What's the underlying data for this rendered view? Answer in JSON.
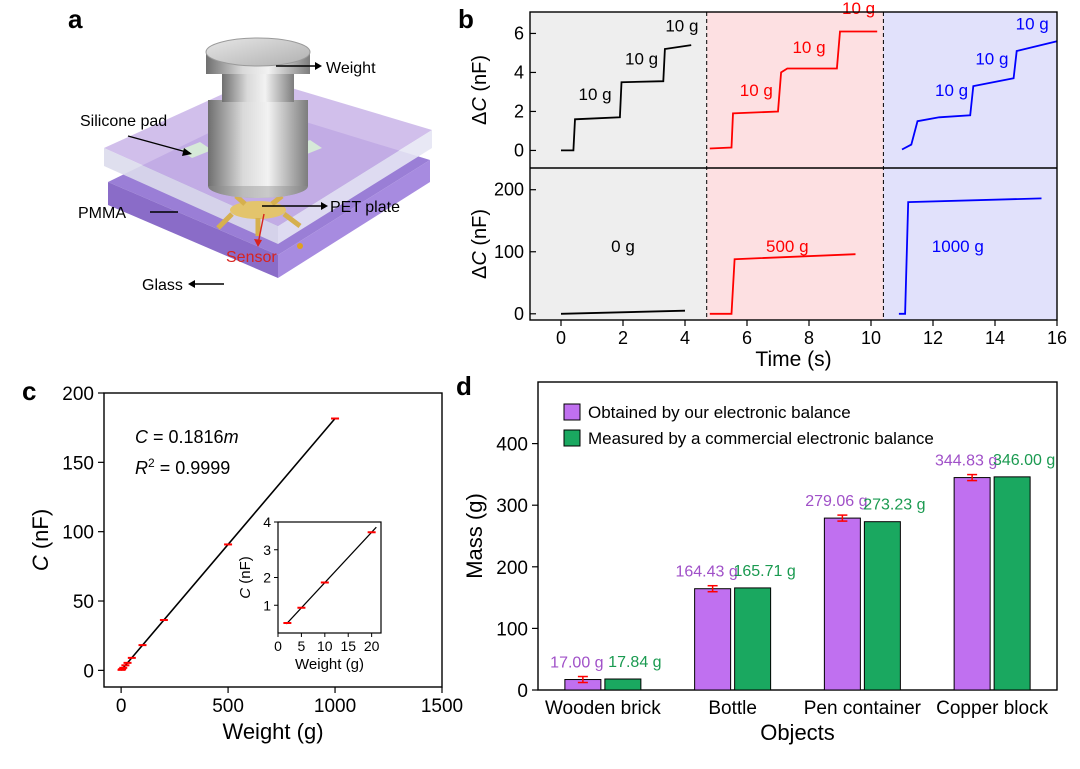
{
  "panel_labels": [
    "a",
    "b",
    "c",
    "d"
  ],
  "diagram_a": {
    "labels": {
      "weight": "Weight",
      "silicone_pad": "Silicone pad",
      "pmma": "PMMA",
      "pet_plate": "PET plate",
      "sensor": "Sensor",
      "glass": "Glass"
    },
    "sensor_color": "#d8231e",
    "plate_color": "#9a7ed6"
  },
  "chart_data": [
    {
      "id": "b",
      "type": "line",
      "xlabel": "Time (s)",
      "xlim": [
        -1,
        16
      ],
      "xticks": [
        0,
        2,
        4,
        6,
        8,
        10,
        12,
        14,
        16
      ],
      "regions": [
        {
          "x0": -1,
          "x1": 4.7,
          "color": "#eeeeee"
        },
        {
          "x0": 4.7,
          "x1": 10.4,
          "color": "#fde0e2"
        },
        {
          "x0": 10.4,
          "x1": 16,
          "color": "#e1e1fb"
        }
      ],
      "top": {
        "ylabel_italic": "C",
        "ylabel_prefix": "Δ",
        "ylabel_suffix": " (nF)",
        "ylim": [
          -0.9,
          7.1
        ],
        "yticks": [
          0,
          2,
          4,
          6
        ],
        "series": [
          {
            "color": "#000000",
            "points": [
              [
                0,
                0
              ],
              [
                0.4,
                0
              ],
              [
                0.45,
                1.6
              ],
              [
                1.9,
                1.7
              ],
              [
                1.95,
                3.5
              ],
              [
                3.3,
                3.55
              ],
              [
                3.35,
                5.2
              ],
              [
                4.2,
                5.4
              ]
            ],
            "annotations": [
              {
                "x": 1.1,
                "y": 2.6,
                "text": "10 g"
              },
              {
                "x": 2.6,
                "y": 4.4,
                "text": "10 g"
              },
              {
                "x": 3.9,
                "y": 6.1,
                "text": "10 g"
              }
            ]
          },
          {
            "color": "#ff0000",
            "points": [
              [
                4.8,
                0.1
              ],
              [
                5.5,
                0.15
              ],
              [
                5.55,
                1.9
              ],
              [
                7.0,
                2.0
              ],
              [
                7.1,
                4.0
              ],
              [
                7.3,
                4.2
              ],
              [
                8.9,
                4.2
              ],
              [
                9.0,
                6.1
              ],
              [
                10.2,
                6.1
              ]
            ],
            "annotations": [
              {
                "x": 6.3,
                "y": 2.8,
                "text": "10 g"
              },
              {
                "x": 8.0,
                "y": 5.0,
                "text": "10 g"
              },
              {
                "x": 9.6,
                "y": 7.0,
                "text": "10 g"
              }
            ]
          },
          {
            "color": "#0000ff",
            "points": [
              [
                11.0,
                0.05
              ],
              [
                11.3,
                0.3
              ],
              [
                11.5,
                1.5
              ],
              [
                12.2,
                1.7
              ],
              [
                13.2,
                1.8
              ],
              [
                13.3,
                3.3
              ],
              [
                14.6,
                3.7
              ],
              [
                14.7,
                5.1
              ],
              [
                16,
                5.6
              ]
            ],
            "annotations": [
              {
                "x": 12.6,
                "y": 2.8,
                "text": "10 g"
              },
              {
                "x": 13.9,
                "y": 4.4,
                "text": "10 g"
              },
              {
                "x": 15.2,
                "y": 6.2,
                "text": "10 g"
              }
            ]
          }
        ]
      },
      "bottom": {
        "ylabel_italic": "C",
        "ylabel_prefix": "Δ",
        "ylabel_suffix": " (nF)",
        "ylim": [
          -10,
          235
        ],
        "yticks": [
          0,
          100,
          200
        ],
        "series": [
          {
            "color": "#000000",
            "points": [
              [
                0,
                0
              ],
              [
                4,
                5
              ]
            ],
            "annotations": [
              {
                "x": 2.0,
                "y": 100,
                "text": "0 g"
              }
            ]
          },
          {
            "color": "#ff0000",
            "points": [
              [
                4.8,
                0
              ],
              [
                5.5,
                0
              ],
              [
                5.6,
                88
              ],
              [
                9.5,
                96
              ]
            ],
            "annotations": [
              {
                "x": 7.3,
                "y": 100,
                "text": "500 g"
              }
            ]
          },
          {
            "color": "#0000ff",
            "points": [
              [
                10.9,
                0
              ],
              [
                11.1,
                0
              ],
              [
                11.2,
                180
              ],
              [
                15.5,
                186
              ]
            ],
            "annotations": [
              {
                "x": 12.8,
                "y": 100,
                "text": "1000 g"
              }
            ]
          }
        ]
      }
    },
    {
      "id": "c",
      "type": "scatter",
      "xlabel": "Weight (g)",
      "ylabel_italic": "C",
      "ylabel_suffix": " (nF)",
      "xlim": [
        -80,
        1500
      ],
      "ylim": [
        -12,
        200
      ],
      "xticks": [
        0,
        500,
        1000,
        1500
      ],
      "yticks": [
        0,
        50,
        100,
        150,
        200
      ],
      "points": [
        [
          2,
          0.36
        ],
        [
          5,
          0.91
        ],
        [
          10,
          1.82
        ],
        [
          20,
          3.63
        ],
        [
          30,
          5.4
        ],
        [
          50,
          9.0
        ],
        [
          100,
          18.2
        ],
        [
          200,
          36.3
        ],
        [
          500,
          90.8
        ],
        [
          1000,
          181.6
        ]
      ],
      "fit": {
        "slope": 0.1816
      },
      "equation": {
        "lhs": "C",
        "eq": " =  0.1816",
        "var": "m",
        "r2_label": "R",
        "r2_sup": "2",
        "r2_value": " = 0.9999"
      },
      "marker_color": "#ff0000",
      "inset": {
        "xlabel": "Weight (g)",
        "ylabel_italic": "C",
        "ylabel_suffix": " (nF)",
        "xlim": [
          0,
          22
        ],
        "ylim": [
          0,
          4
        ],
        "xticks": [
          0,
          5,
          10,
          15,
          20
        ],
        "yticks": [
          1,
          2,
          3,
          4
        ],
        "points": [
          [
            2,
            0.36
          ],
          [
            5,
            0.91
          ],
          [
            10,
            1.82
          ],
          [
            20,
            3.63
          ]
        ]
      }
    },
    {
      "id": "d",
      "type": "bar",
      "xlabel": "Objects",
      "ylabel": "Mass (g)",
      "ylim": [
        0,
        500
      ],
      "yticks": [
        0,
        100,
        200,
        300,
        400
      ],
      "categories": [
        "Wooden brick",
        "Bottle",
        "Pen container",
        "Copper block"
      ],
      "series": [
        {
          "name": "Obtained by our electronic balance",
          "color": "#c070f0",
          "label_color": "#a050c8",
          "values": [
            17.0,
            164.43,
            279.06,
            344.83
          ],
          "labels": [
            "17.00 g",
            "164.43 g",
            "279.06 g",
            "344.83 g"
          ]
        },
        {
          "name": "Measured by a commercial electronic balance",
          "color": "#1aa860",
          "label_color": "#1a9a50",
          "values": [
            17.84,
            165.71,
            273.23,
            346.0
          ],
          "labels": [
            "17.84 g",
            "165.71 g",
            "273.23 g",
            "346.00 g"
          ]
        }
      ],
      "legend_position": "top-left"
    }
  ]
}
